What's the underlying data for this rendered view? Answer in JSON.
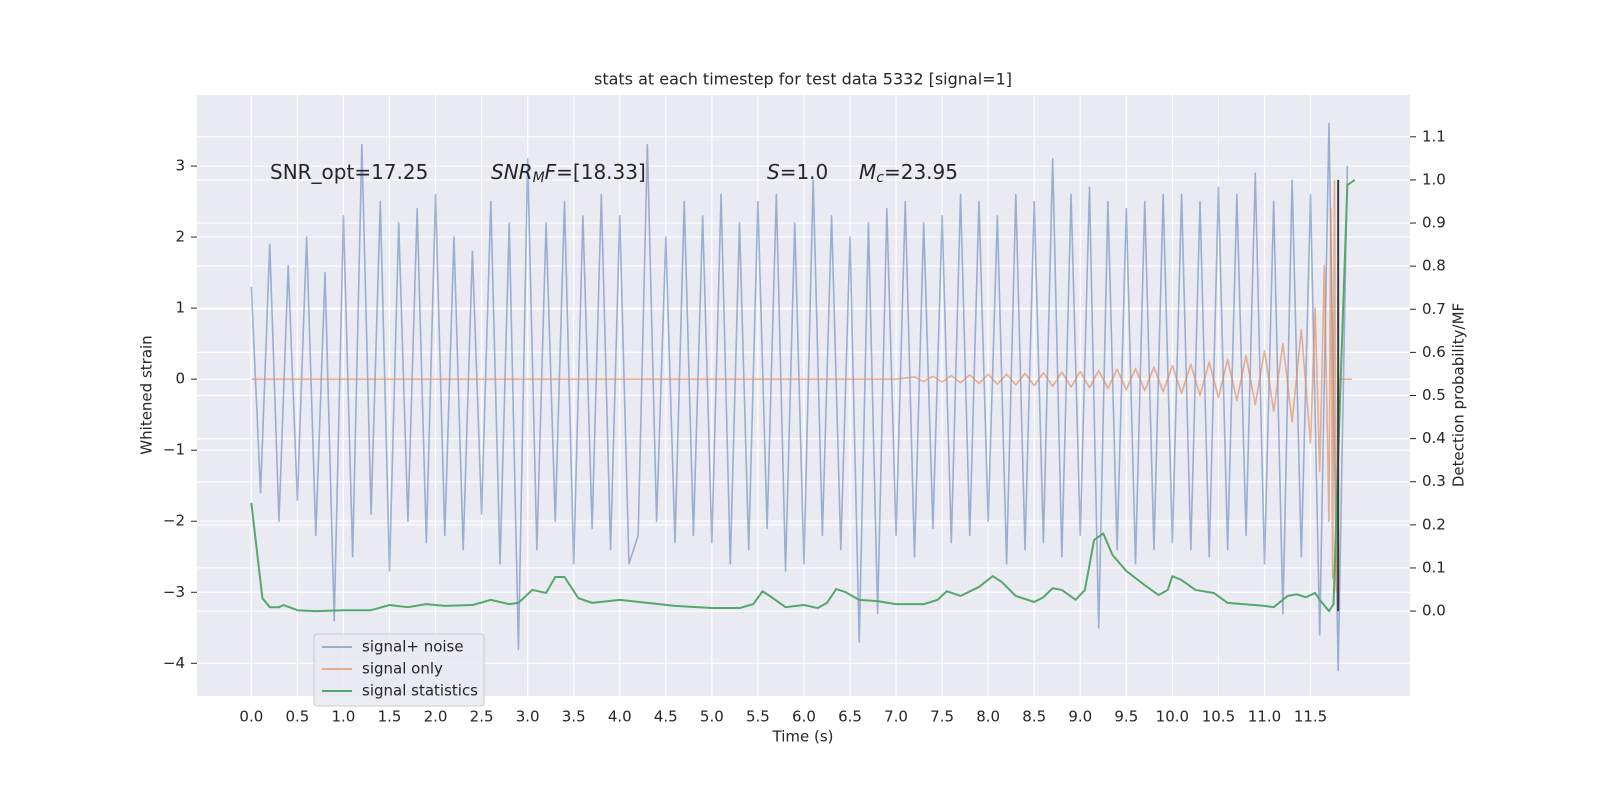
{
  "chart_data": {
    "type": "line",
    "title": "stats at each timestep for test data 5332 [signal=1]",
    "xlabel": "Time (s)",
    "ylabel": "Whitened strain",
    "y2label": "Detection probability/MF",
    "xlim": [
      -0.59,
      12.58
    ],
    "ylim": [
      -4.46,
      4.0
    ],
    "y2lim": [
      -0.197,
      1.197
    ],
    "xticks": [
      {
        "value": 0,
        "label": "0.0"
      },
      0.5,
      {
        "value": 1,
        "label": "1.0"
      },
      1.5,
      {
        "value": 2,
        "label": "2.0"
      },
      2.5,
      {
        "value": 3,
        "label": "3.0"
      },
      3.5,
      {
        "value": 4,
        "label": "4.0"
      },
      4.5,
      {
        "value": 5,
        "label": "5.0"
      },
      5.5,
      {
        "value": 6,
        "label": "6.0"
      },
      6.5,
      {
        "value": 7,
        "label": "7.0"
      },
      7.5,
      {
        "value": 8,
        "label": "8.0"
      },
      8.5,
      {
        "value": 9,
        "label": "9.0"
      },
      9.5,
      {
        "value": 10,
        "label": "10.0"
      },
      10.5,
      {
        "value": 11,
        "label": "11.0"
      },
      11.5
    ],
    "yticks": [
      {
        "value": -4,
        "label": "−4"
      },
      {
        "value": -3,
        "label": "−3"
      },
      {
        "value": -2,
        "label": "−2"
      },
      {
        "value": -1,
        "label": "−1"
      },
      0,
      1,
      2,
      3
    ],
    "y2ticks": [
      {
        "value": 0,
        "label": "0.0"
      },
      0.1,
      0.2,
      0.3,
      0.4,
      0.5,
      0.6,
      0.7,
      0.8,
      0.9,
      {
        "value": 1,
        "label": "1.0"
      },
      1.1
    ],
    "grid": true,
    "legend": "lower left",
    "annotations": [
      {
        "parts": [
          {
            "text": "SNR_opt=17.25"
          }
        ]
      },
      {
        "parts": [
          {
            "text": "SNR",
            "style": "italic"
          },
          {
            "text": "M",
            "style": "italic-sub"
          },
          {
            "text": "F",
            "style": "italic"
          },
          {
            "text": "=[18.33]"
          }
        ]
      },
      {
        "parts": [
          {
            "text": "S",
            "style": "italic"
          },
          {
            "text": "=1.0"
          }
        ]
      },
      {
        "parts": [
          {
            "text": "M",
            "style": "italic"
          },
          {
            "text": "c",
            "style": "italic-sub"
          },
          {
            "text": "=23.95"
          }
        ]
      }
    ],
    "vlines": [
      {
        "x": 11.8,
        "y2": [
          0,
          1.0
        ],
        "color": "#3a3a3a"
      }
    ],
    "series": [
      {
        "name": "signal+ noise",
        "color": "#4c72b0",
        "opacity": 0.5,
        "x": [
          0.0,
          0.1,
          0.2,
          0.3,
          0.4,
          0.5,
          0.6,
          0.7,
          0.8,
          0.9,
          1.0,
          1.1,
          1.2,
          1.3,
          1.4,
          1.5,
          1.6,
          1.7,
          1.8,
          1.9,
          2.0,
          2.1,
          2.2,
          2.3,
          2.4,
          2.5,
          2.6,
          2.7,
          2.8,
          2.9,
          3.0,
          3.1,
          3.2,
          3.3,
          3.4,
          3.5,
          3.6,
          3.7,
          3.8,
          3.9,
          4.0,
          4.1,
          4.2,
          4.3,
          4.4,
          4.5,
          4.6,
          4.7,
          4.8,
          4.9,
          5.0,
          5.1,
          5.2,
          5.3,
          5.4,
          5.5,
          5.6,
          5.7,
          5.8,
          5.9,
          6.0,
          6.1,
          6.2,
          6.3,
          6.4,
          6.5,
          6.6,
          6.7,
          6.8,
          6.9,
          7.0,
          7.1,
          7.2,
          7.3,
          7.4,
          7.5,
          7.6,
          7.7,
          7.8,
          7.9,
          8.0,
          8.1,
          8.2,
          8.3,
          8.4,
          8.5,
          8.6,
          8.7,
          8.8,
          8.9,
          9.0,
          9.1,
          9.2,
          9.3,
          9.4,
          9.5,
          9.6,
          9.7,
          9.8,
          9.9,
          10.0,
          10.1,
          10.2,
          10.3,
          10.4,
          10.5,
          10.6,
          10.7,
          10.8,
          10.9,
          11.0,
          11.1,
          11.2,
          11.3,
          11.4,
          11.5,
          11.6,
          11.7,
          11.8,
          11.9
        ],
        "values": [
          1.3,
          -1.6,
          1.9,
          -2.0,
          1.6,
          -1.7,
          2.0,
          -2.2,
          1.5,
          -3.4,
          2.3,
          -2.5,
          3.3,
          -1.9,
          2.5,
          -2.7,
          2.2,
          -2.0,
          2.4,
          -2.3,
          2.6,
          -2.2,
          2.0,
          -2.4,
          1.8,
          -1.9,
          2.5,
          -2.6,
          2.2,
          -3.8,
          3.1,
          -2.4,
          2.2,
          -2.0,
          2.5,
          -2.6,
          2.3,
          -2.1,
          2.6,
          -2.4,
          2.3,
          -2.6,
          -2.2,
          3.3,
          -2.0,
          2.0,
          -2.3,
          2.5,
          -2.2,
          2.3,
          -2.3,
          2.6,
          -2.6,
          2.2,
          -2.4,
          2.5,
          -2.1,
          2.6,
          -2.7,
          2.2,
          -2.6,
          2.8,
          -2.2,
          2.3,
          -2.4,
          2.0,
          -3.7,
          2.2,
          -3.3,
          2.4,
          -2.2,
          2.5,
          -2.5,
          2.2,
          -2.1,
          2.3,
          -2.3,
          2.6,
          -2.2,
          2.5,
          -2.0,
          2.3,
          -2.6,
          2.6,
          -2.4,
          2.5,
          -2.3,
          3.1,
          -2.5,
          2.6,
          -2.2,
          2.7,
          -3.5,
          2.5,
          -2.4,
          2.4,
          -2.6,
          2.5,
          -2.4,
          2.6,
          -2.3,
          2.6,
          -2.4,
          2.5,
          -2.5,
          2.7,
          -2.4,
          2.6,
          -2.2,
          2.9,
          -2.6,
          2.5,
          -3.3,
          2.8,
          -2.5,
          2.6,
          -3.6,
          3.6,
          -4.1,
          3.0
        ]
      },
      {
        "name": "signal only",
        "color": "#dd8452",
        "opacity": 0.6,
        "x": [
          0,
          7.0,
          7.2,
          7.3,
          7.4,
          7.5,
          7.6,
          7.7,
          7.8,
          7.9,
          8.0,
          8.1,
          8.2,
          8.3,
          8.4,
          8.5,
          8.6,
          8.7,
          8.8,
          8.9,
          9.0,
          9.1,
          9.2,
          9.3,
          9.4,
          9.5,
          9.6,
          9.7,
          9.8,
          9.9,
          10.0,
          10.1,
          10.2,
          10.3,
          10.4,
          10.5,
          10.6,
          10.7,
          10.8,
          10.9,
          11.0,
          11.1,
          11.2,
          11.3,
          11.4,
          11.5,
          11.55,
          11.6,
          11.65,
          11.7,
          11.72,
          11.74,
          11.76,
          11.78,
          11.8,
          11.95
        ],
        "values": [
          0,
          0,
          0.03,
          -0.03,
          0.04,
          -0.04,
          0.05,
          -0.05,
          0.06,
          -0.06,
          0.07,
          -0.07,
          0.07,
          -0.08,
          0.08,
          -0.09,
          0.09,
          -0.1,
          0.1,
          -0.11,
          0.11,
          -0.12,
          0.12,
          -0.13,
          0.14,
          -0.15,
          0.15,
          -0.16,
          0.17,
          -0.18,
          0.19,
          -0.2,
          0.21,
          -0.23,
          0.24,
          -0.26,
          0.28,
          -0.3,
          0.33,
          -0.36,
          0.4,
          -0.45,
          0.5,
          -0.6,
          0.7,
          -0.9,
          1.0,
          -1.3,
          1.6,
          -2.0,
          2.4,
          -2.8,
          2.8,
          -3.0,
          0,
          0
        ]
      },
      {
        "name": "signal statistics",
        "color": "#55a868",
        "axis": "y2",
        "x": [
          0.0,
          0.12,
          0.2,
          0.3,
          0.35,
          0.5,
          0.7,
          1.0,
          1.3,
          1.5,
          1.7,
          1.9,
          2.1,
          2.4,
          2.6,
          2.8,
          2.9,
          3.05,
          3.2,
          3.3,
          3.4,
          3.55,
          3.7,
          4.0,
          4.3,
          4.6,
          5.0,
          5.3,
          5.45,
          5.55,
          5.65,
          5.8,
          6.0,
          6.15,
          6.25,
          6.35,
          6.45,
          6.6,
          6.8,
          7.0,
          7.3,
          7.45,
          7.55,
          7.7,
          7.9,
          8.05,
          8.15,
          8.3,
          8.5,
          8.6,
          8.7,
          8.8,
          8.95,
          9.05,
          9.15,
          9.25,
          9.35,
          9.5,
          9.7,
          9.85,
          9.95,
          10.0,
          10.1,
          10.25,
          10.45,
          10.6,
          11.0,
          11.1,
          11.25,
          11.35,
          11.45,
          11.55,
          11.6,
          11.7,
          11.75,
          11.82,
          11.9,
          11.98
        ],
        "values": [
          0.251,
          0.03,
          0.009,
          0.009,
          0.014,
          0.002,
          0,
          0.002,
          0.002,
          0.014,
          0.009,
          0.016,
          0.012,
          0.014,
          0.026,
          0.016,
          0.019,
          0.049,
          0.042,
          0.079,
          0.079,
          0.03,
          0.019,
          0.026,
          0.019,
          0.012,
          0.007,
          0.007,
          0.016,
          0.046,
          0.032,
          0.009,
          0.014,
          0.007,
          0.019,
          0.051,
          0.044,
          0.026,
          0.023,
          0.016,
          0.016,
          0.026,
          0.046,
          0.035,
          0.056,
          0.081,
          0.067,
          0.035,
          0.021,
          0.032,
          0.053,
          0.049,
          0.026,
          0.049,
          0.165,
          0.18,
          0.13,
          0.093,
          0.06,
          0.037,
          0.049,
          0.081,
          0.072,
          0.049,
          0.042,
          0.019,
          0.012,
          0.009,
          0.035,
          0.039,
          0.032,
          0.042,
          0.026,
          0,
          0.016,
          0.49,
          0.988,
          1.0
        ]
      }
    ]
  }
}
